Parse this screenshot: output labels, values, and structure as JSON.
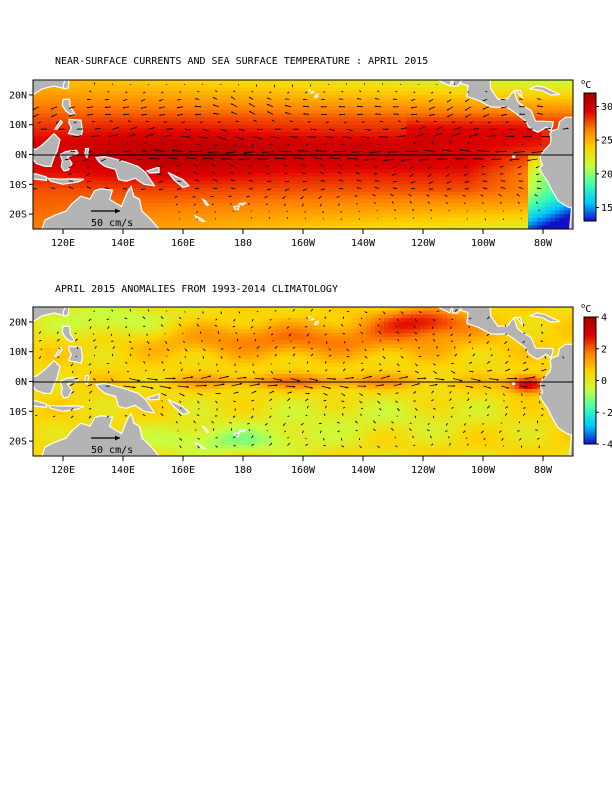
{
  "panels": [
    {
      "title": "NEAR-SURFACE CURRENTS AND SEA SURFACE TEMPERATURE : APRIL 2015",
      "scale_label": "50 cm/s",
      "colorbar_unit": "oC",
      "colorbar_ticks": [
        "30",
        "25",
        "20",
        "15"
      ],
      "colorbar_range": [
        13,
        32
      ],
      "field": "sst"
    },
    {
      "title": "APRIL 2015 ANOMALIES FROM 1993-2014 CLIMATOLOGY",
      "scale_label": "50 cm/s",
      "colorbar_unit": "oC",
      "colorbar_ticks": [
        "4",
        "2",
        "0",
        "-2",
        "-4"
      ],
      "colorbar_range": [
        -4,
        4
      ],
      "field": "anomaly"
    }
  ],
  "lat_labels": [
    "20N",
    "10N",
    "0N",
    "10S",
    "20S"
  ],
  "lon_labels": [
    "120E",
    "140E",
    "160E",
    "180",
    "160W",
    "140W",
    "120W",
    "100W",
    "80W"
  ],
  "colors": {
    "land": "#b4b4b4",
    "sst_scale": [
      "#1010c8",
      "#00c8ff",
      "#40ffb0",
      "#c8ff40",
      "#ffd200",
      "#ff8000",
      "#e00000",
      "#a00000"
    ],
    "anom_scale": [
      "#1010c8",
      "#00c8ff",
      "#40ffb0",
      "#c8ff40",
      "#ffd200",
      "#ff8000",
      "#e00000",
      "#a00000"
    ]
  }
}
